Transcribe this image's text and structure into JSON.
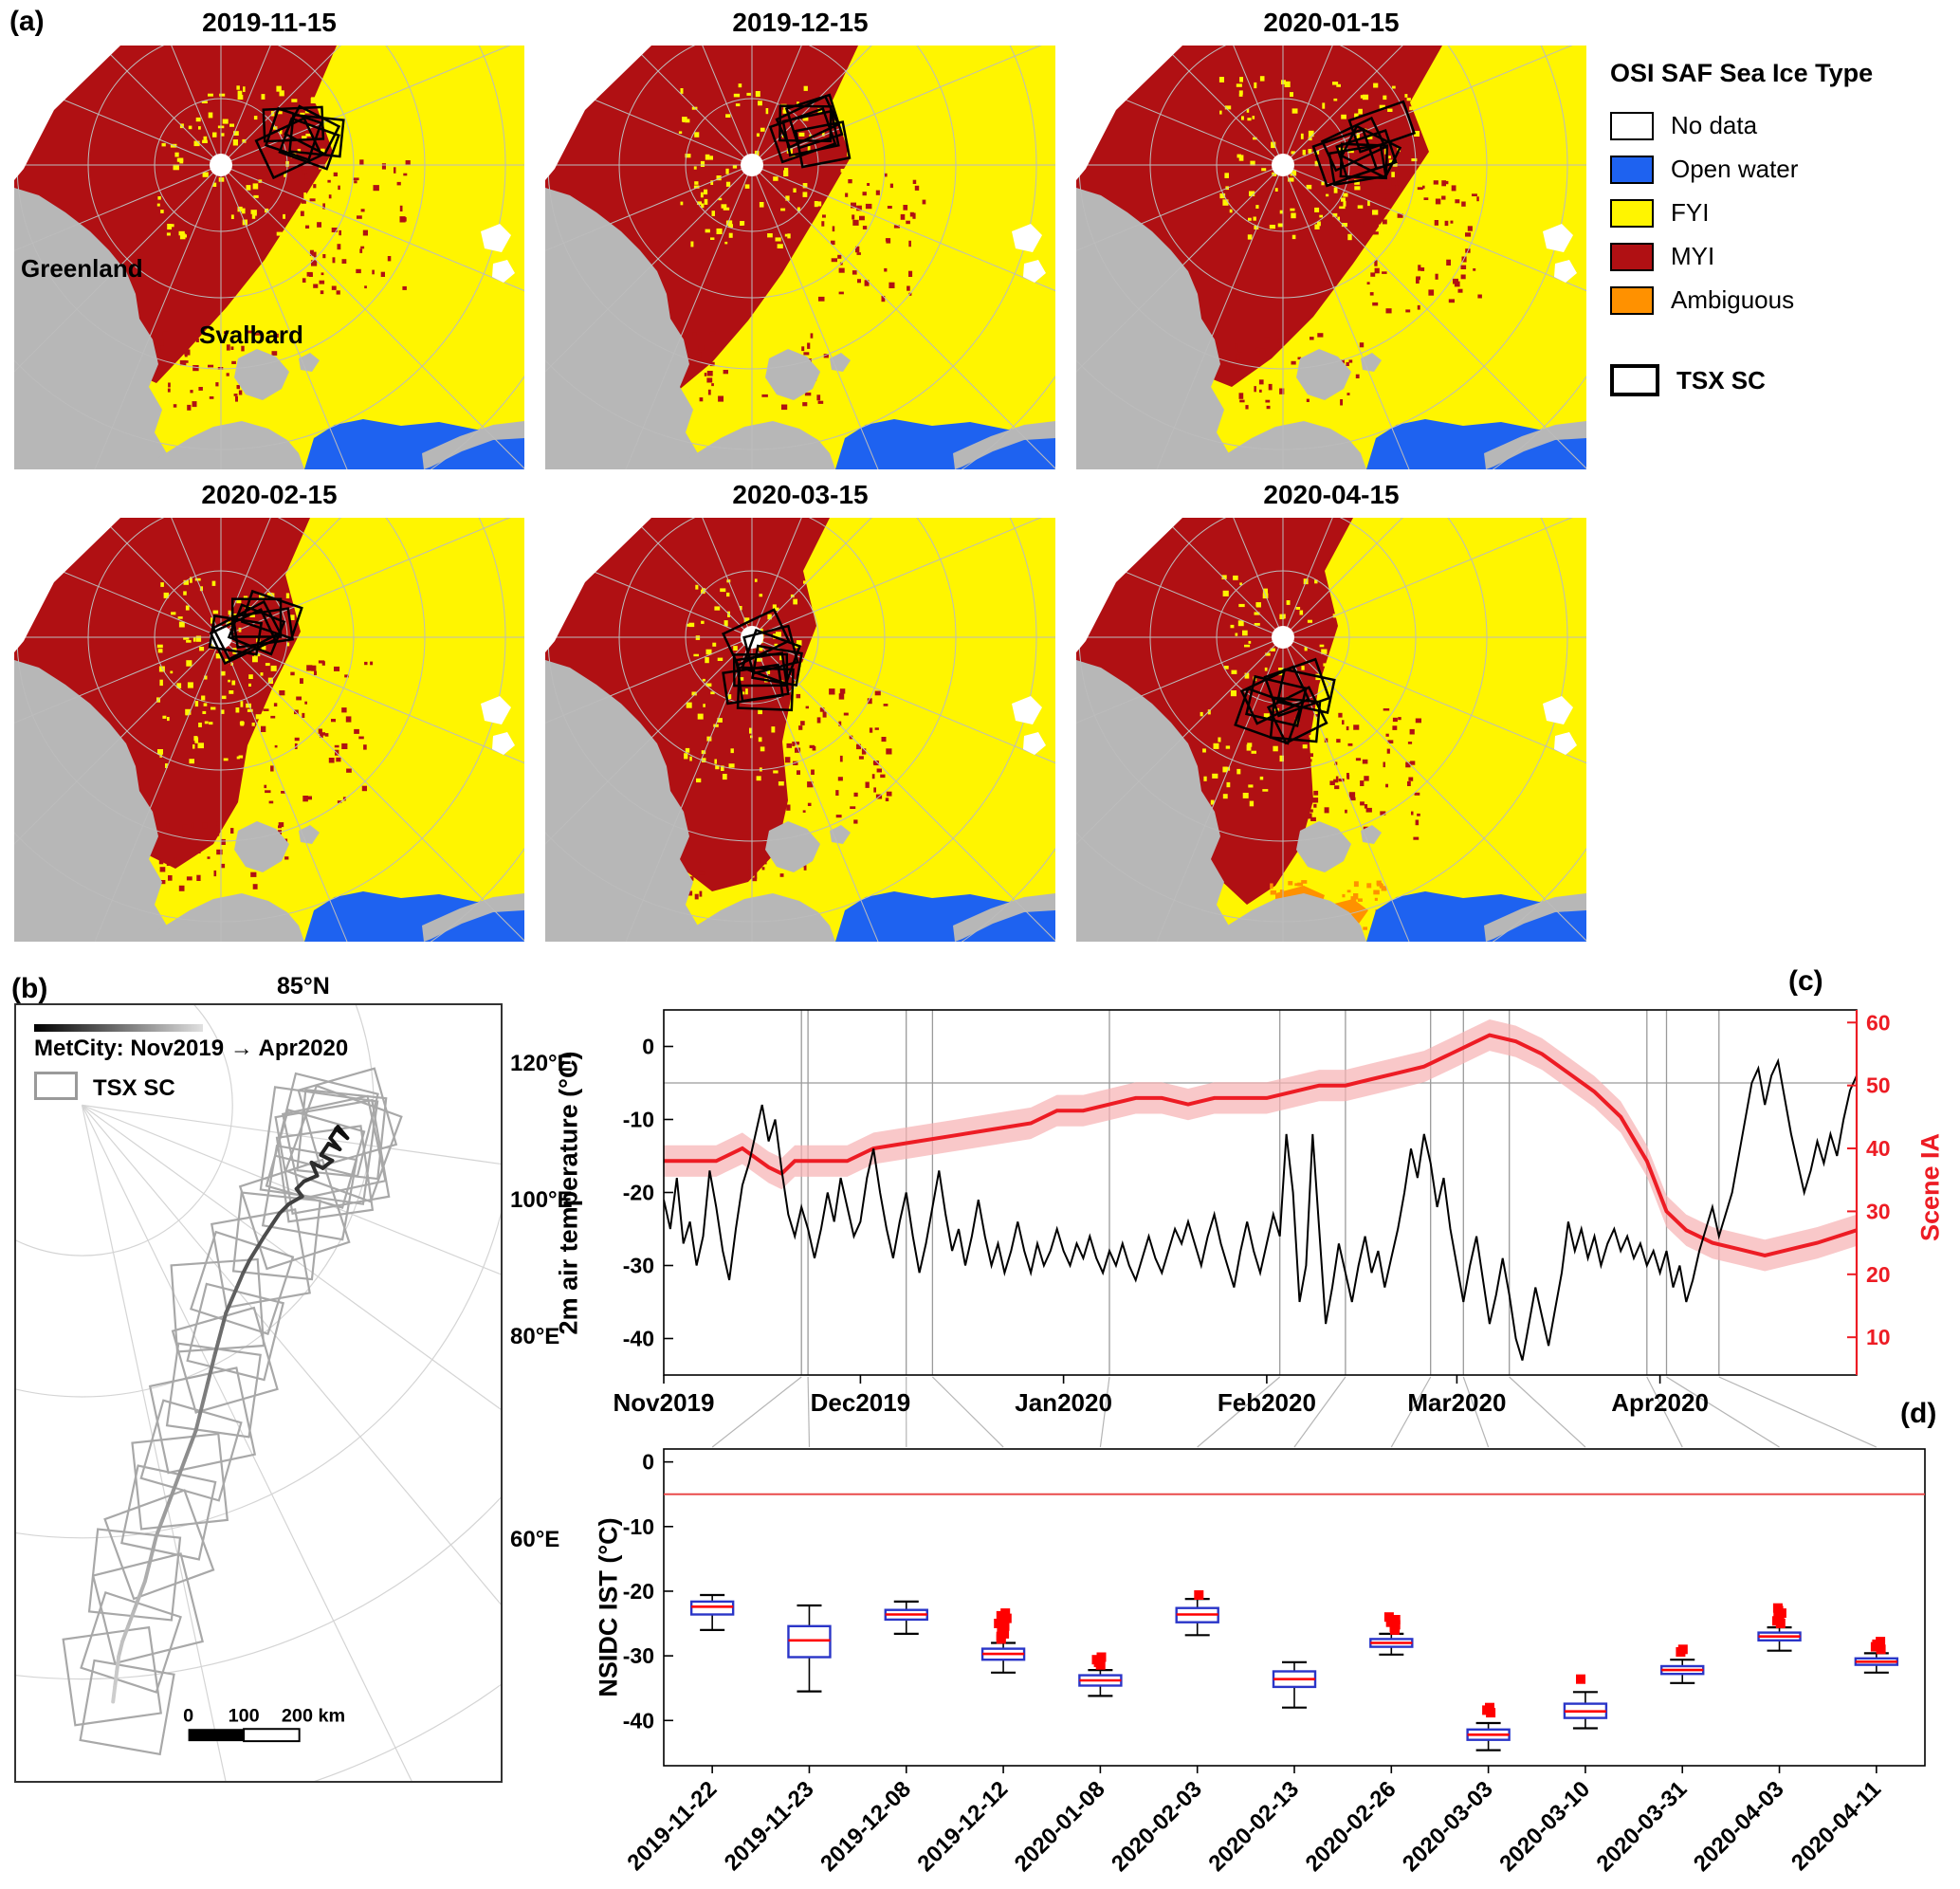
{
  "panels": {
    "a": "(a)",
    "b": "(b)",
    "c": "(c)",
    "d": "(d)"
  },
  "colors": {
    "no_data": "#ffffff",
    "open_water": "#1e62f0",
    "fyi": "#fff500",
    "myi": "#b01013",
    "ambiguous": "#ff9100",
    "land": "#b7b7b7",
    "graticule": "#bcbcbc",
    "scene_ia": "#ed1c24",
    "temp": "#000000",
    "box": "#2a35c8",
    "median": "#ff0000",
    "refline": "#e84040",
    "track_gray": "#a8a8a8"
  },
  "maps": {
    "titles": [
      "2019-11-15",
      "2019-12-15",
      "2020-01-15",
      "2020-02-15",
      "2020-03-15",
      "2020-04-15"
    ],
    "labels": {
      "greenland": "Greenland",
      "svalbard": "Svalbard"
    }
  },
  "legend": {
    "title": "OSI SAF Sea Ice Type",
    "items": [
      {
        "label": "No data",
        "color": "#ffffff"
      },
      {
        "label": "Open water",
        "color": "#1e62f0"
      },
      {
        "label": "FYI",
        "color": "#fff500"
      },
      {
        "label": "MYI",
        "color": "#b01013"
      },
      {
        "label": "Ambiguous",
        "color": "#ff9100"
      }
    ],
    "tsx_label": "TSX SC"
  },
  "track_map": {
    "legend_track": "MetCity: Nov2019 → Apr2020",
    "legend_tsx": "TSX SC",
    "lat_label": "85°N",
    "lon_labels": [
      "120°E",
      "100°E",
      "80°E",
      "60°E"
    ],
    "scale_labels": [
      "0",
      "100",
      "200 km"
    ]
  },
  "chart_data": [
    {
      "id": "met-timeseries",
      "type": "line",
      "ylabel_left": "2m air temperature (°C)",
      "ylabel_right": "Scene IA",
      "x_ticks": [
        "Nov2019",
        "Dec2019",
        "Jan2020",
        "Feb2020",
        "Mar2020",
        "Apr2020"
      ],
      "x_tick_days": [
        0,
        30,
        61,
        92,
        121,
        152
      ],
      "x_range_days": [
        0,
        182
      ],
      "ylim_left": [
        -45,
        5
      ],
      "left_ticks": [
        0,
        -10,
        -20,
        -30,
        -40
      ],
      "ylim_right": [
        4,
        62
      ],
      "right_ticks": [
        10,
        20,
        30,
        40,
        50,
        60
      ],
      "refline_left": -5,
      "acquisition_days": [
        21,
        22,
        37,
        41,
        68,
        94,
        104,
        117,
        122,
        129,
        150,
        153,
        161
      ],
      "band_half": 2.5,
      "series": [
        {
          "name": "2m air temperature",
          "color": "#000000",
          "x_start": 0,
          "x_step": 1,
          "y": [
            -21,
            -25,
            -18,
            -27,
            -24,
            -30,
            -26,
            -17,
            -22,
            -28,
            -32,
            -25,
            -19,
            -16,
            -12,
            -8,
            -13,
            -10,
            -17,
            -23,
            -26,
            -22,
            -25,
            -29,
            -25,
            -20,
            -24,
            -18,
            -22,
            -26,
            -24,
            -18,
            -14,
            -20,
            -25,
            -29,
            -24,
            -20,
            -26,
            -31,
            -27,
            -22,
            -17,
            -23,
            -28,
            -25,
            -30,
            -26,
            -21,
            -26,
            -30,
            -27,
            -31,
            -28,
            -24,
            -28,
            -31,
            -27,
            -30,
            -28,
            -25,
            -28,
            -30,
            -27,
            -29,
            -26,
            -29,
            -31,
            -28,
            -30,
            -27,
            -30,
            -32,
            -29,
            -26,
            -29,
            -31,
            -28,
            -25,
            -27,
            -24,
            -27,
            -30,
            -26,
            -23,
            -27,
            -30,
            -33,
            -28,
            -24,
            -28,
            -31,
            -27,
            -23,
            -26,
            -12,
            -20,
            -35,
            -30,
            -12,
            -25,
            -38,
            -33,
            -27,
            -31,
            -35,
            -30,
            -26,
            -31,
            -28,
            -33,
            -29,
            -25,
            -20,
            -14,
            -18,
            -12,
            -16,
            -22,
            -18,
            -25,
            -30,
            -35,
            -30,
            -26,
            -32,
            -38,
            -34,
            -29,
            -34,
            -40,
            -43,
            -38,
            -33,
            -37,
            -41,
            -36,
            -31,
            -24,
            -28,
            -25,
            -29,
            -26,
            -30,
            -27,
            -25,
            -28,
            -26,
            -29,
            -27,
            -30,
            -28,
            -31,
            -28,
            -33,
            -30,
            -35,
            -32,
            -28,
            -25,
            -22,
            -26,
            -23,
            -20,
            -15,
            -10,
            -5,
            -3,
            -8,
            -4,
            -2,
            -7,
            -12,
            -16,
            -20,
            -17,
            -13,
            -16,
            -12,
            -15,
            -10,
            -6,
            -4
          ]
        },
        {
          "name": "Scene IA",
          "color": "#ed1c24",
          "x": [
            0,
            8,
            12,
            16,
            18,
            20,
            24,
            28,
            32,
            38,
            44,
            50,
            56,
            60,
            64,
            68,
            72,
            76,
            80,
            84,
            88,
            92,
            96,
            100,
            104,
            108,
            112,
            116,
            120,
            124,
            126,
            130,
            134,
            138,
            142,
            146,
            150,
            153,
            156,
            160,
            164,
            168,
            172,
            176,
            182
          ],
          "y": [
            38,
            38,
            40,
            37,
            36,
            38,
            38,
            38,
            40,
            41,
            42,
            43,
            44,
            46,
            46,
            47,
            48,
            48,
            47,
            48,
            48,
            48,
            49,
            50,
            50,
            51,
            52,
            53,
            55,
            57,
            58,
            57,
            55,
            52,
            49,
            45,
            38,
            30,
            27,
            25,
            24,
            23,
            24,
            25,
            27
          ]
        }
      ]
    },
    {
      "id": "nsidc-ist-boxplot",
      "type": "boxplot",
      "ylabel": "NSIDC IST (°C)",
      "yticks": [
        0,
        -10,
        -20,
        -30,
        -40
      ],
      "ylim": [
        -47,
        2
      ],
      "refline": -5,
      "categories": [
        "2019-11-22",
        "2019-11-23",
        "2019-12-08",
        "2019-12-12",
        "2020-01-08",
        "2020-02-03",
        "2020-02-13",
        "2020-02-26",
        "2020-03-03",
        "2020-03-10",
        "2020-03-31",
        "2020-04-03",
        "2020-04-11"
      ],
      "boxes": [
        {
          "lo": -26.0,
          "q1": -23.6,
          "med": -22.4,
          "q3": -21.6,
          "hi": -20.6,
          "out": []
        },
        {
          "lo": -35.5,
          "q1": -30.2,
          "med": -27.6,
          "q3": -25.4,
          "hi": -22.2,
          "out": []
        },
        {
          "lo": -26.6,
          "q1": -24.4,
          "med": -23.6,
          "q3": -22.9,
          "hi": -21.6,
          "out": []
        },
        {
          "lo": -32.6,
          "q1": -30.6,
          "med": -29.7,
          "q3": -28.9,
          "hi": -28.0,
          "out": [
            -27.4,
            -27.0,
            -26.6,
            -26.2,
            -25.8,
            -25.4,
            -25.0,
            -24.6,
            -24.2,
            -23.8,
            -23.4
          ]
        },
        {
          "lo": -36.2,
          "q1": -34.6,
          "med": -33.8,
          "q3": -33.0,
          "hi": -32.2,
          "out": [
            -31.4,
            -31.0,
            -30.6,
            -30.2
          ]
        },
        {
          "lo": -26.8,
          "q1": -24.8,
          "med": -23.6,
          "q3": -22.6,
          "hi": -21.2,
          "out": [
            -20.6
          ]
        },
        {
          "lo": -38.0,
          "q1": -34.8,
          "med": -33.6,
          "q3": -32.4,
          "hi": -31.0,
          "out": []
        },
        {
          "lo": -29.8,
          "q1": -28.6,
          "med": -28.0,
          "q3": -27.4,
          "hi": -26.6,
          "out": [
            -26.0,
            -25.6,
            -25.2,
            -24.8,
            -24.4,
            -24.0
          ]
        },
        {
          "lo": -44.6,
          "q1": -43.0,
          "med": -42.2,
          "q3": -41.4,
          "hi": -40.4,
          "out": [
            -38.8,
            -38.4,
            -38.0
          ]
        },
        {
          "lo": -41.2,
          "q1": -39.6,
          "med": -38.6,
          "q3": -37.4,
          "hi": -35.6,
          "out": [
            -33.6
          ]
        },
        {
          "lo": -34.2,
          "q1": -32.8,
          "med": -32.2,
          "q3": -31.6,
          "hi": -30.6,
          "out": [
            -29.4,
            -29.0
          ]
        },
        {
          "lo": -29.2,
          "q1": -27.6,
          "med": -27.0,
          "q3": -26.4,
          "hi": -25.6,
          "out": [
            -25.0,
            -24.6,
            -24.2,
            -23.8,
            -23.4,
            -23.0,
            -22.6
          ]
        },
        {
          "lo": -32.6,
          "q1": -31.4,
          "med": -30.9,
          "q3": -30.4,
          "hi": -29.6,
          "out": [
            -29.0,
            -28.6,
            -28.2,
            -27.8
          ]
        }
      ]
    }
  ]
}
